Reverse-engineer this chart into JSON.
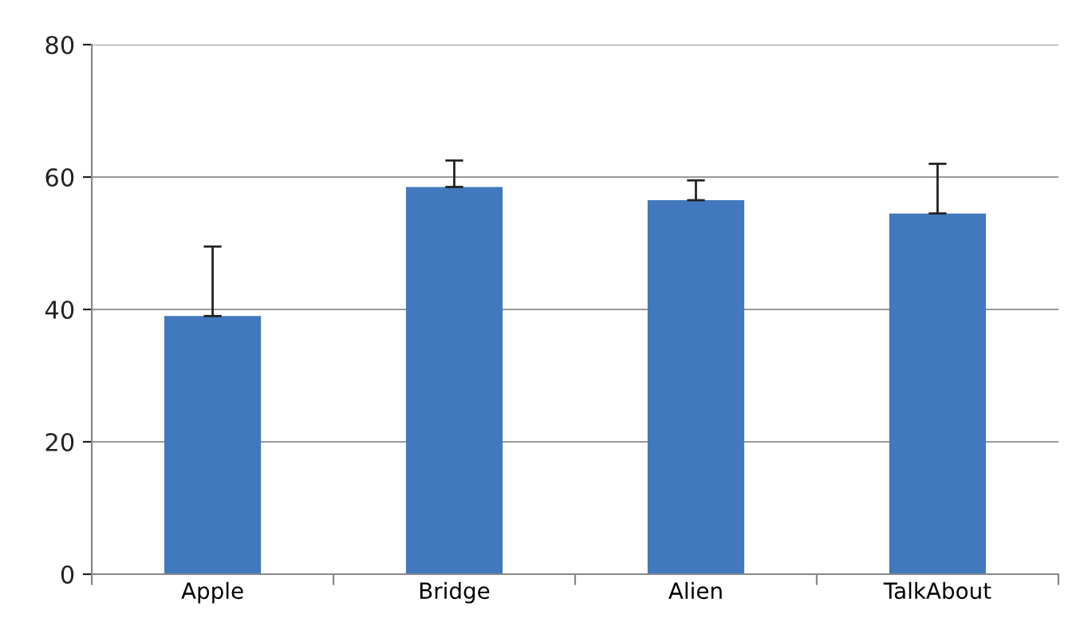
{
  "chart_data": {
    "type": "bar",
    "categories": [
      "Apple",
      "Bridge",
      "Alien",
      "TalkAbout"
    ],
    "values": [
      39,
      58.5,
      56.5,
      54.5
    ],
    "errors": [
      [
        39,
        49.5
      ],
      [
        58.5,
        62.5
      ],
      [
        56.5,
        59.5
      ],
      [
        54.5,
        62
      ]
    ],
    "color": "#4279be",
    "ylim": [
      0,
      80
    ],
    "yticks": [
      0,
      20,
      40,
      60,
      80
    ],
    "grid": "y",
    "legend": false
  }
}
